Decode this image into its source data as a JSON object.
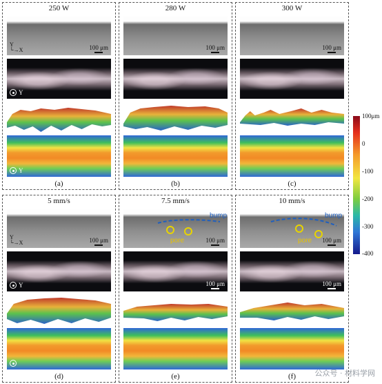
{
  "panels": [
    {
      "title": "250 W",
      "caption": "(a)"
    },
    {
      "title": "280 W",
      "caption": "(b)"
    },
    {
      "title": "300 W",
      "caption": "(c)"
    },
    {
      "title": "5 mm/s",
      "caption": "(d)"
    },
    {
      "title": "7.5 mm/s",
      "caption": "(e)"
    },
    {
      "title": "10 mm/s",
      "caption": "(f)"
    }
  ],
  "scale_label": "100 μm",
  "axes": {
    "y": "Y",
    "x": "X"
  },
  "colorbar": {
    "ticks": [
      "100μm",
      "0",
      "-100",
      "-200",
      "-300",
      "-400"
    ],
    "colors": [
      "#8b0a1a",
      "#e52f1c",
      "#f59a2a",
      "#f2e640",
      "#7ccd3f",
      "#2bb8a8",
      "#2f76d6",
      "#151a8c"
    ]
  },
  "annotations": {
    "bump": "bump",
    "pore": "pore"
  },
  "watermark": "公众号 · 材料学网"
}
